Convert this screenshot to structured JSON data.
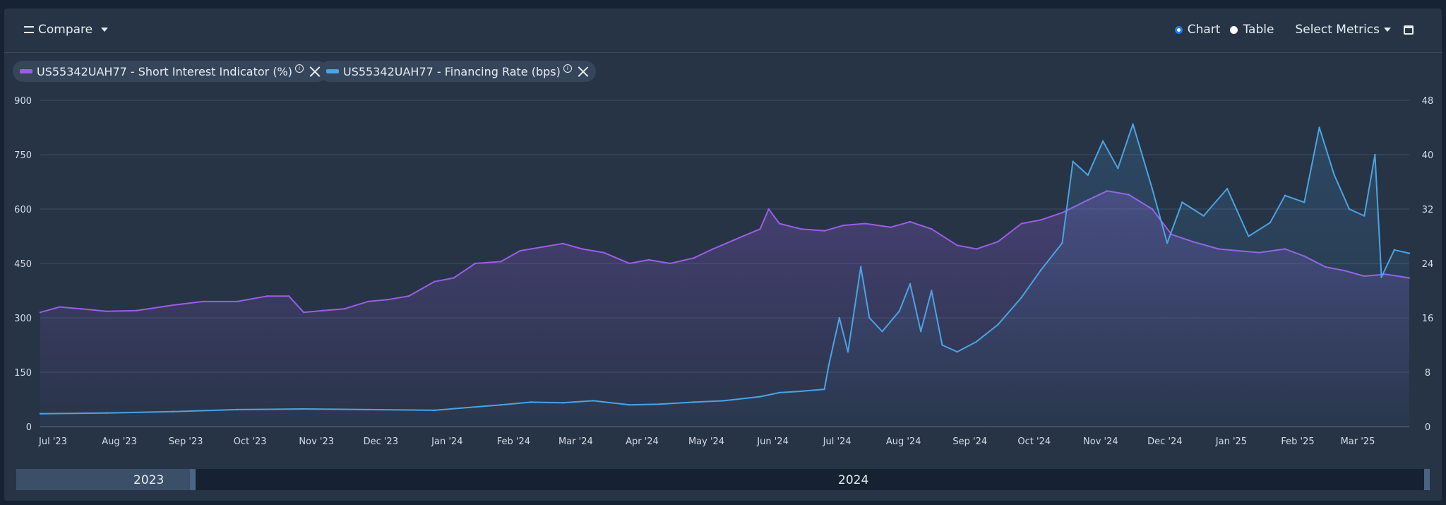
{
  "toolbar": {
    "compare_label": "Compare",
    "chart_label": "Chart",
    "table_label": "Table",
    "select_metrics_label": "Select Metrics",
    "view_mode": "Chart"
  },
  "chips": [
    {
      "label": "US55342UAH77 - Short Interest Indicator (%)",
      "color": "#9b5de5"
    },
    {
      "label": "US55342UAH77 - Financing Rate (bps)",
      "color": "#4ba3e3"
    }
  ],
  "navigator": {
    "labels": [
      "2023",
      "2024"
    ]
  },
  "chart_data": {
    "type": "line",
    "x_range": [
      "2023-07-01",
      "2025-03-31"
    ],
    "x_ticks": [
      "Jul '23",
      "Aug '23",
      "Sep '23",
      "Oct '23",
      "Nov '23",
      "Dec '23",
      "Jan '24",
      "Feb '24",
      "Mar '24",
      "Apr '24",
      "May '24",
      "Jun '24",
      "Jul '24",
      "Aug '24",
      "Sep '24",
      "Oct '24",
      "Nov '24",
      "Dec '24",
      "Jan '25",
      "Feb '25",
      "Mar '25"
    ],
    "y_left": {
      "range": [
        0,
        900
      ],
      "ticks": [
        "0",
        "150",
        "300",
        "450",
        "600",
        "750",
        "900"
      ]
    },
    "y_right": {
      "range": [
        0,
        48
      ],
      "ticks": [
        "0",
        "8",
        "16",
        "24",
        "32",
        "40",
        "48"
      ]
    },
    "grid": true,
    "series": [
      {
        "name": "US55342UAH77 - Short Interest Indicator (%)",
        "axis": "left",
        "color": "#9b5de5",
        "points": [
          [
            "2023-07-01",
            315
          ],
          [
            "2023-07-10",
            330
          ],
          [
            "2023-07-20",
            325
          ],
          [
            "2023-08-01",
            318
          ],
          [
            "2023-08-15",
            320
          ],
          [
            "2023-09-01",
            335
          ],
          [
            "2023-09-15",
            345
          ],
          [
            "2023-10-01",
            345
          ],
          [
            "2023-10-15",
            360
          ],
          [
            "2023-10-25",
            360
          ],
          [
            "2023-11-01",
            315
          ],
          [
            "2023-11-10",
            320
          ],
          [
            "2023-11-20",
            325
          ],
          [
            "2023-12-01",
            345
          ],
          [
            "2023-12-10",
            350
          ],
          [
            "2023-12-20",
            360
          ],
          [
            "2024-01-01",
            400
          ],
          [
            "2024-01-10",
            410
          ],
          [
            "2024-01-20",
            450
          ],
          [
            "2024-02-01",
            455
          ],
          [
            "2024-02-10",
            485
          ],
          [
            "2024-02-20",
            495
          ],
          [
            "2024-03-01",
            505
          ],
          [
            "2024-03-10",
            490
          ],
          [
            "2024-03-20",
            480
          ],
          [
            "2024-04-01",
            450
          ],
          [
            "2024-04-10",
            460
          ],
          [
            "2024-04-20",
            450
          ],
          [
            "2024-05-01",
            465
          ],
          [
            "2024-05-10",
            490
          ],
          [
            "2024-05-20",
            515
          ],
          [
            "2024-06-01",
            545
          ],
          [
            "2024-06-05",
            600
          ],
          [
            "2024-06-10",
            560
          ],
          [
            "2024-06-20",
            545
          ],
          [
            "2024-07-01",
            540
          ],
          [
            "2024-07-10",
            555
          ],
          [
            "2024-07-20",
            560
          ],
          [
            "2024-08-01",
            550
          ],
          [
            "2024-08-10",
            565
          ],
          [
            "2024-08-20",
            545
          ],
          [
            "2024-09-01",
            500
          ],
          [
            "2024-09-10",
            490
          ],
          [
            "2024-09-20",
            510
          ],
          [
            "2024-10-01",
            560
          ],
          [
            "2024-10-10",
            570
          ],
          [
            "2024-10-20",
            590
          ],
          [
            "2024-11-01",
            625
          ],
          [
            "2024-11-10",
            650
          ],
          [
            "2024-11-20",
            640
          ],
          [
            "2024-12-01",
            600
          ],
          [
            "2024-12-10",
            530
          ],
          [
            "2024-12-20",
            510
          ],
          [
            "2025-01-01",
            490
          ],
          [
            "2025-01-10",
            485
          ],
          [
            "2025-01-20",
            480
          ],
          [
            "2025-02-01",
            490
          ],
          [
            "2025-02-10",
            470
          ],
          [
            "2025-02-20",
            440
          ],
          [
            "2025-03-01",
            430
          ],
          [
            "2025-03-10",
            415
          ],
          [
            "2025-03-20",
            420
          ],
          [
            "2025-03-31",
            410
          ]
        ]
      },
      {
        "name": "US55342UAH77 - Financing Rate (bps)",
        "axis": "right",
        "color": "#4ba3e3",
        "points": [
          [
            "2023-07-01",
            1.9
          ],
          [
            "2023-08-01",
            2.0
          ],
          [
            "2023-09-01",
            2.2
          ],
          [
            "2023-10-01",
            2.5
          ],
          [
            "2023-11-01",
            2.6
          ],
          [
            "2023-12-01",
            2.5
          ],
          [
            "2024-01-01",
            2.4
          ],
          [
            "2024-02-01",
            3.2
          ],
          [
            "2024-02-15",
            3.6
          ],
          [
            "2024-03-01",
            3.5
          ],
          [
            "2024-03-15",
            3.8
          ],
          [
            "2024-04-01",
            3.2
          ],
          [
            "2024-04-15",
            3.3
          ],
          [
            "2024-05-01",
            3.6
          ],
          [
            "2024-05-15",
            3.8
          ],
          [
            "2024-06-01",
            4.4
          ],
          [
            "2024-06-10",
            5.0
          ],
          [
            "2024-06-20",
            5.2
          ],
          [
            "2024-07-01",
            5.5
          ],
          [
            "2024-07-03",
            9.0
          ],
          [
            "2024-07-08",
            16.0
          ],
          [
            "2024-07-12",
            11.0
          ],
          [
            "2024-07-18",
            23.5
          ],
          [
            "2024-07-22",
            16.0
          ],
          [
            "2024-07-28",
            14.0
          ],
          [
            "2024-08-05",
            17.0
          ],
          [
            "2024-08-10",
            21.0
          ],
          [
            "2024-08-15",
            14.0
          ],
          [
            "2024-08-20",
            20.0
          ],
          [
            "2024-08-25",
            12.0
          ],
          [
            "2024-09-01",
            11.0
          ],
          [
            "2024-09-10",
            12.5
          ],
          [
            "2024-09-20",
            15.0
          ],
          [
            "2024-10-01",
            19.0
          ],
          [
            "2024-10-10",
            23.0
          ],
          [
            "2024-10-20",
            27.0
          ],
          [
            "2024-10-25",
            39.0
          ],
          [
            "2024-11-01",
            37.0
          ],
          [
            "2024-11-08",
            42.0
          ],
          [
            "2024-11-15",
            38.0
          ],
          [
            "2024-11-22",
            44.5
          ],
          [
            "2024-12-01",
            35.0
          ],
          [
            "2024-12-08",
            27.0
          ],
          [
            "2024-12-15",
            33.0
          ],
          [
            "2024-12-25",
            31.0
          ],
          [
            "2025-01-05",
            35.0
          ],
          [
            "2025-01-15",
            28.0
          ],
          [
            "2025-01-25",
            30.0
          ],
          [
            "2025-02-01",
            34.0
          ],
          [
            "2025-02-10",
            33.0
          ],
          [
            "2025-02-17",
            44.0
          ],
          [
            "2025-02-24",
            37.0
          ],
          [
            "2025-03-03",
            32.0
          ],
          [
            "2025-03-10",
            31.0
          ],
          [
            "2025-03-15",
            40.0
          ],
          [
            "2025-03-18",
            22.0
          ],
          [
            "2025-03-24",
            26.0
          ],
          [
            "2025-03-31",
            25.5
          ]
        ]
      }
    ]
  }
}
